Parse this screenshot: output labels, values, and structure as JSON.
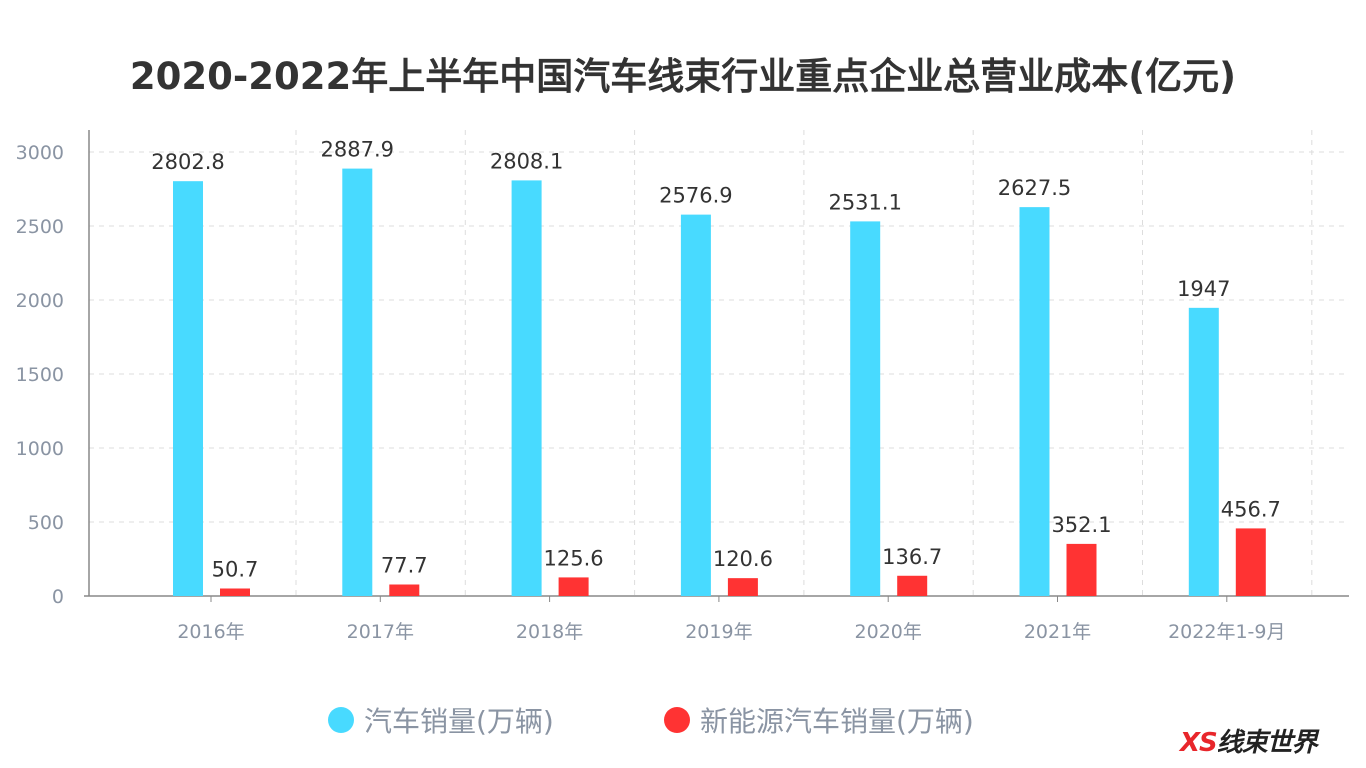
{
  "chart_data": {
    "type": "bar",
    "title": "2020-2022年上半年中国汽车线束行业重点企业总营业成本(亿元)",
    "categories": [
      "2016年",
      "2017年",
      "2018年",
      "2019年",
      "2020年",
      "2021年",
      "2022年1-9月"
    ],
    "series": [
      {
        "name": "汽车销量(万辆)",
        "color": "#48daff",
        "values": [
          2802.8,
          2887.9,
          2808.1,
          2576.9,
          2531.1,
          2627.5,
          1947
        ]
      },
      {
        "name": "新能源汽车销量(万辆)",
        "color": "#ff3333",
        "values": [
          50.7,
          77.7,
          125.6,
          120.6,
          136.7,
          352.1,
          456.7
        ]
      }
    ],
    "data_labels": [
      [
        "2802.8",
        "2887.9",
        "2808.1",
        "2576.9",
        "2531.1",
        "2627.5",
        "1947"
      ],
      [
        "50.7",
        "77.7",
        "125.6",
        "120.6",
        "136.7",
        "352.1",
        "456.7"
      ]
    ],
    "ylim": [
      0,
      3000
    ],
    "yticks": [
      "0",
      "500",
      "1000",
      "1500",
      "2000",
      "2500",
      "3000"
    ],
    "grid": true,
    "legend_position": "bottom"
  },
  "logo": {
    "text": "XS线束世界"
  }
}
